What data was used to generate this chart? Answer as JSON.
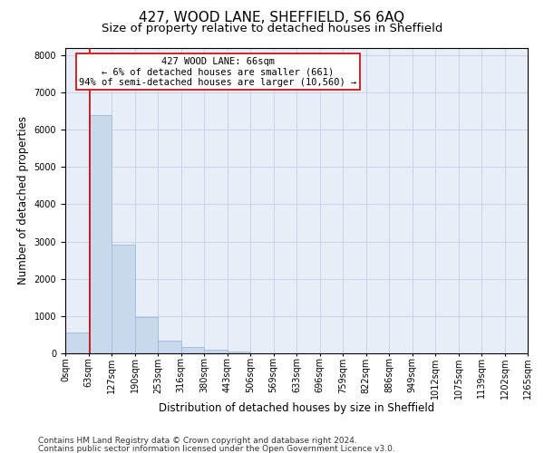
{
  "title": "427, WOOD LANE, SHEFFIELD, S6 6AQ",
  "subtitle": "Size of property relative to detached houses in Sheffield",
  "xlabel": "Distribution of detached houses by size in Sheffield",
  "ylabel": "Number of detached properties",
  "footnote1": "Contains HM Land Registry data © Crown copyright and database right 2024.",
  "footnote2": "Contains public sector information licensed under the Open Government Licence v3.0.",
  "annotation_line1": "427 WOOD LANE: 66sqm",
  "annotation_line2": "← 6% of detached houses are smaller (661)",
  "annotation_line3": "94% of semi-detached houses are larger (10,560) →",
  "bar_values": [
    550,
    6380,
    2920,
    970,
    330,
    165,
    100,
    60,
    0,
    0,
    0,
    0,
    0,
    0,
    0,
    0,
    0,
    0,
    0,
    0
  ],
  "bar_color": "#c8d9ee",
  "bar_edge_color": "#a0b8d8",
  "tick_labels": [
    "0sqm",
    "63sqm",
    "127sqm",
    "190sqm",
    "253sqm",
    "316sqm",
    "380sqm",
    "443sqm",
    "506sqm",
    "569sqm",
    "633sqm",
    "696sqm",
    "759sqm",
    "822sqm",
    "886sqm",
    "949sqm",
    "1012sqm",
    "1075sqm",
    "1139sqm",
    "1202sqm",
    "1265sqm"
  ],
  "n_bins": 20,
  "property_line_x": 1.06,
  "ylim": [
    0,
    8200
  ],
  "yticks": [
    0,
    1000,
    2000,
    3000,
    4000,
    5000,
    6000,
    7000,
    8000
  ],
  "grid_color": "#c8d4e8",
  "bg_color": "#e8eef8",
  "box_color": "#cc0000",
  "title_fontsize": 11,
  "subtitle_fontsize": 9.5,
  "xlabel_fontsize": 8.5,
  "ylabel_fontsize": 8.5,
  "tick_fontsize": 7,
  "annotation_fontsize": 7.5,
  "footnote_fontsize": 6.5
}
